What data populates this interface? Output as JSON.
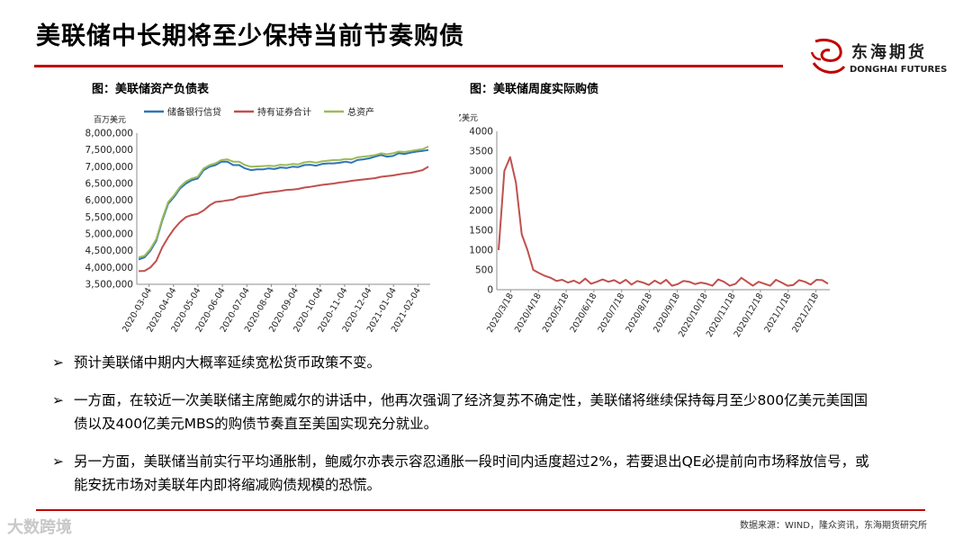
{
  "title": "美联储中长期将至少保持当前节奏购债",
  "logo": {
    "cn": "东海期货",
    "en": "DONGHAI FUTURES"
  },
  "chart_data": [
    {
      "type": "line",
      "title": "图：美联储资产负债表",
      "yunit": "百万美元",
      "ylim": [
        3500000,
        8000000
      ],
      "yticks": [
        "3,500,000",
        "4,000,000",
        "4,500,000",
        "5,000,000",
        "5,500,000",
        "6,000,000",
        "6,500,000",
        "7,000,000",
        "7,500,000",
        "8,000,000"
      ],
      "xticks": [
        "2020-03-04",
        "2020-04-04",
        "2020-05-04",
        "2020-06-04",
        "2020-07-04",
        "2020-08-04",
        "2020-09-04",
        "2020-10-04",
        "2020-11-04",
        "2020-12-04",
        "2021-01-04",
        "2021-02-04"
      ],
      "series": [
        {
          "name": "储备银行信贷",
          "color": "#2e75b6",
          "values": [
            4240000,
            4300000,
            4500000,
            4800000,
            5400000,
            5900000,
            6100000,
            6350000,
            6500000,
            6600000,
            6650000,
            6900000,
            7000000,
            7050000,
            7150000,
            7150000,
            7050000,
            7050000,
            6950000,
            6900000,
            6920000,
            6920000,
            6950000,
            6930000,
            6980000,
            6960000,
            7000000,
            6990000,
            7050000,
            7060000,
            7030000,
            7080000,
            7100000,
            7100000,
            7120000,
            7150000,
            7120000,
            7200000,
            7220000,
            7250000,
            7300000,
            7350000,
            7300000,
            7320000,
            7400000,
            7380000,
            7420000,
            7450000,
            7470000,
            7500000
          ]
        },
        {
          "name": "持有证券合计",
          "color": "#c0504d",
          "values": [
            3890000,
            3900000,
            4000000,
            4200000,
            4600000,
            4900000,
            5150000,
            5350000,
            5500000,
            5560000,
            5600000,
            5700000,
            5850000,
            5950000,
            5970000,
            6000000,
            6020000,
            6100000,
            6120000,
            6150000,
            6180000,
            6220000,
            6240000,
            6260000,
            6280000,
            6310000,
            6320000,
            6340000,
            6380000,
            6400000,
            6430000,
            6460000,
            6480000,
            6500000,
            6530000,
            6550000,
            6580000,
            6600000,
            6620000,
            6640000,
            6660000,
            6700000,
            6720000,
            6740000,
            6770000,
            6800000,
            6820000,
            6860000,
            6900000,
            7000000
          ]
        },
        {
          "name": "总资产",
          "color": "#9bbb59",
          "values": [
            4300000,
            4350000,
            4550000,
            4850000,
            5450000,
            5950000,
            6150000,
            6400000,
            6560000,
            6650000,
            6700000,
            6950000,
            7050000,
            7100000,
            7200000,
            7220000,
            7150000,
            7150000,
            7050000,
            7000000,
            7010000,
            7020000,
            7030000,
            7020000,
            7060000,
            7050000,
            7080000,
            7070000,
            7130000,
            7150000,
            7120000,
            7160000,
            7180000,
            7200000,
            7200000,
            7230000,
            7220000,
            7280000,
            7300000,
            7320000,
            7350000,
            7400000,
            7370000,
            7400000,
            7450000,
            7440000,
            7470000,
            7500000,
            7520000,
            7600000
          ]
        }
      ]
    },
    {
      "type": "line",
      "title": "图：美联储周度实际购债",
      "yunit": "亿美元",
      "ylim": [
        0,
        4000
      ],
      "yticks": [
        "0",
        "500",
        "1000",
        "1500",
        "2000",
        "2500",
        "3000",
        "3500",
        "4000"
      ],
      "xticks": [
        "2020/3/18",
        "2020/4/18",
        "2020/5/18",
        "2020/6/18",
        "2020/7/18",
        "2020/8/18",
        "2020/9/18",
        "2020/10/18",
        "2020/11/18",
        "2020/12/18",
        "2021/1/18",
        "2021/2/18"
      ],
      "series": [
        {
          "name": "周度实际购债",
          "color": "#c0504d",
          "values": [
            1000,
            3000,
            3350,
            2700,
            1400,
            1000,
            500,
            420,
            350,
            300,
            220,
            250,
            180,
            230,
            160,
            280,
            150,
            200,
            260,
            200,
            240,
            160,
            250,
            130,
            220,
            180,
            120,
            230,
            150,
            250,
            100,
            140,
            220,
            200,
            140,
            180,
            150,
            100,
            260,
            200,
            100,
            150,
            300,
            200,
            100,
            200,
            150,
            100,
            250,
            180,
            100,
            120,
            240,
            200,
            130,
            250,
            240,
            150
          ]
        }
      ]
    }
  ],
  "bullets": [
    "预计美联储中期内大概率延续宽松货币政策不变。",
    "一方面，在较近一次美联储主席鲍威尔的讲话中，他再次强调了经济复苏不确定性，美联储将继续保持每月至少800亿美元美国国债以及400亿美元MBS的购债节奏直至美国实现充分就业。",
    "另一方面，美联储当前实行平均通胀制，鲍威尔亦表示容忍通胀一段时间内适度超过2%，若要退出QE必提前向市场释放信号，或能安抚市场对美联年内即将缩减购债规模的恐慌。"
  ],
  "bullet_marker": "➢",
  "source": "数据来源：WIND，隆众资讯，东海期货研究所",
  "watermark": "大数跨境"
}
